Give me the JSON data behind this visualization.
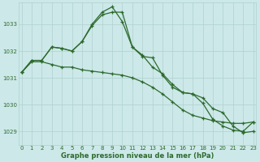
{
  "xlabel": "Graphe pression niveau de la mer (hPa)",
  "x": [
    0,
    1,
    2,
    3,
    4,
    5,
    6,
    7,
    8,
    9,
    10,
    11,
    12,
    13,
    14,
    15,
    16,
    17,
    18,
    19,
    20,
    21,
    22,
    23
  ],
  "series1": [
    1031.2,
    1031.6,
    1031.6,
    1031.5,
    1031.4,
    1031.4,
    1031.3,
    1031.25,
    1031.2,
    1031.15,
    1031.1,
    1031.0,
    1030.85,
    1030.65,
    1030.4,
    1030.1,
    1029.8,
    1029.6,
    1029.5,
    1029.4,
    1029.35,
    1029.3,
    1029.3,
    1029.35
  ],
  "series2": [
    1031.2,
    1031.65,
    1031.65,
    1032.15,
    1032.1,
    1032.0,
    1032.35,
    1032.95,
    1033.35,
    1033.45,
    1033.45,
    1032.15,
    1031.8,
    1031.75,
    1031.1,
    1030.65,
    1030.45,
    1030.4,
    1030.25,
    1029.85,
    1029.7,
    1029.2,
    1028.95,
    1029.0
  ],
  "series3": [
    1031.2,
    1031.65,
    1031.65,
    1032.15,
    1032.1,
    1032.0,
    1032.35,
    1033.0,
    1033.45,
    1033.65,
    1033.1,
    1032.15,
    1031.85,
    1031.4,
    1031.15,
    1030.75,
    1030.45,
    1030.4,
    1030.05,
    1029.45,
    1029.2,
    1029.05,
    1029.0,
    1029.35
  ],
  "line_color": "#2d6a2d",
  "bg_color": "#cce8e8",
  "grid_color": "#b0d0d0",
  "ylim_min": 1028.5,
  "ylim_max": 1033.8,
  "xlim_min": -0.3,
  "xlim_max": 23.3,
  "yticks": [
    1029,
    1030,
    1031,
    1032,
    1033
  ],
  "xticks": [
    0,
    1,
    2,
    3,
    4,
    5,
    6,
    7,
    8,
    9,
    10,
    11,
    12,
    13,
    14,
    15,
    16,
    17,
    18,
    19,
    20,
    21,
    22,
    23
  ],
  "label_fontsize": 6.0,
  "tick_fontsize": 5.0,
  "marker": "+"
}
